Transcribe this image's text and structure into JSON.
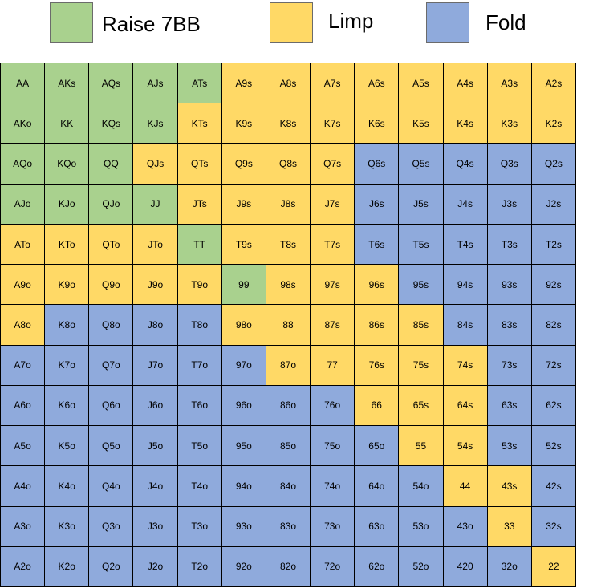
{
  "legend": [
    {
      "key": "R",
      "label": "Raise 7BB",
      "color": "#a9d18e"
    },
    {
      "key": "L",
      "label": "Limp",
      "color": "#ffd966"
    },
    {
      "key": "F",
      "label": "Fold",
      "color": "#8faadc"
    }
  ],
  "grid": {
    "rows": [
      [
        "AA",
        "AKs",
        "AQs",
        "AJs",
        "ATs",
        "A9s",
        "A8s",
        "A7s",
        "A6s",
        "A5s",
        "A4s",
        "A3s",
        "A2s"
      ],
      [
        "AKo",
        "KK",
        "KQs",
        "KJs",
        "KTs",
        "K9s",
        "K8s",
        "K7s",
        "K6s",
        "K5s",
        "K4s",
        "K3s",
        "K2s"
      ],
      [
        "AQo",
        "KQo",
        "QQ",
        "QJs",
        "QTs",
        "Q9s",
        "Q8s",
        "Q7s",
        "Q6s",
        "Q5s",
        "Q4s",
        "Q3s",
        "Q2s"
      ],
      [
        "AJo",
        "KJo",
        "QJo",
        "JJ",
        "JTs",
        "J9s",
        "J8s",
        "J7s",
        "J6s",
        "J5s",
        "J4s",
        "J3s",
        "J2s"
      ],
      [
        "ATo",
        "KTo",
        "QTo",
        "JTo",
        "TT",
        "T9s",
        "T8s",
        "T7s",
        "T6s",
        "T5s",
        "T4s",
        "T3s",
        "T2s"
      ],
      [
        "A9o",
        "K9o",
        "Q9o",
        "J9o",
        "T9o",
        "99",
        "98s",
        "97s",
        "96s",
        "95s",
        "94s",
        "93s",
        "92s"
      ],
      [
        "A8o",
        "K8o",
        "Q8o",
        "J8o",
        "T8o",
        "98o",
        "88",
        "87s",
        "86s",
        "85s",
        "84s",
        "83s",
        "82s"
      ],
      [
        "A7o",
        "K7o",
        "Q7o",
        "J7o",
        "T7o",
        "97o",
        "87o",
        "77",
        "76s",
        "75s",
        "74s",
        "73s",
        "72s"
      ],
      [
        "A6o",
        "K6o",
        "Q6o",
        "J6o",
        "T6o",
        "96o",
        "86o",
        "76o",
        "66",
        "65s",
        "64s",
        "63s",
        "62s"
      ],
      [
        "A5o",
        "K5o",
        "Q5o",
        "J5o",
        "T5o",
        "95o",
        "85o",
        "75o",
        "65o",
        "55",
        "54s",
        "53s",
        "52s"
      ],
      [
        "A4o",
        "K4o",
        "Q4o",
        "J4o",
        "T4o",
        "94o",
        "84o",
        "74o",
        "64o",
        "54o",
        "44",
        "43s",
        "42s"
      ],
      [
        "A3o",
        "K3o",
        "Q3o",
        "J3o",
        "T3o",
        "93o",
        "83o",
        "73o",
        "63o",
        "53o",
        "43o",
        "33",
        "32s"
      ],
      [
        "A2o",
        "K2o",
        "Q2o",
        "J2o",
        "T2o",
        "92o",
        "82o",
        "72o",
        "62o",
        "52o",
        "420",
        "32o",
        "22"
      ]
    ],
    "actions": [
      "RRRRRLLLLLLLL",
      "RRRRLLLLLLLLL",
      "RRRLLLLLFFFFF",
      "RRRRLLLLFFFFF",
      "LLLLRLLLFFFFF",
      "LLLLLRLLLFFFF",
      "LFFFFLLLLLFFF",
      "FFFFFFLLLLLFF",
      "FFFFFFFFLLLFF",
      "FFFFFFFFFLLFF",
      "FFFFFFFFFFLLF",
      "FFFFFFFFFFFLF",
      "FFFFFFFFFFFFL"
    ]
  }
}
